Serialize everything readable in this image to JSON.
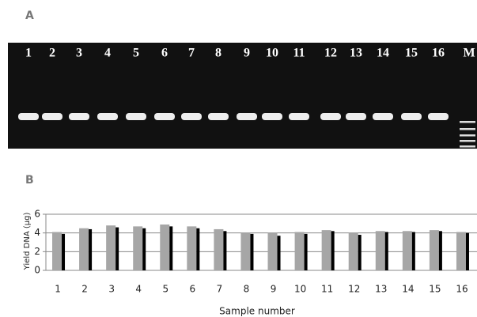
{
  "panel_a": {
    "label": "A",
    "lanes": [
      "1",
      "2",
      "3",
      "4",
      "5",
      "6",
      "7",
      "8",
      "9",
      "10",
      "11",
      "12",
      "13",
      "14",
      "15",
      "16",
      "M"
    ]
  },
  "panel_b": {
    "label": "B"
  },
  "chart_data": {
    "type": "bar",
    "x_label": "Sample number",
    "y_label": "Yield DNA (µg)",
    "categories": [
      "1",
      "2",
      "3",
      "4",
      "5",
      "6",
      "7",
      "8",
      "9",
      "10",
      "11",
      "12",
      "13",
      "14",
      "15",
      "16"
    ],
    "series": [
      {
        "color": "#a6a6a6",
        "values": [
          4.1,
          4.5,
          4.8,
          4.7,
          4.9,
          4.7,
          4.4,
          4.0,
          4.0,
          4.1,
          4.3,
          4.0,
          4.2,
          4.2,
          4.3,
          4.1
        ]
      },
      {
        "color": "#000000",
        "values": [
          3.9,
          4.4,
          4.6,
          4.5,
          4.7,
          4.5,
          4.2,
          3.9,
          3.7,
          3.9,
          4.2,
          3.8,
          4.1,
          4.1,
          4.2,
          4.0
        ]
      }
    ],
    "ylim": [
      0,
      6
    ],
    "yticks": [
      0,
      2,
      4,
      6
    ],
    "grid": true
  }
}
